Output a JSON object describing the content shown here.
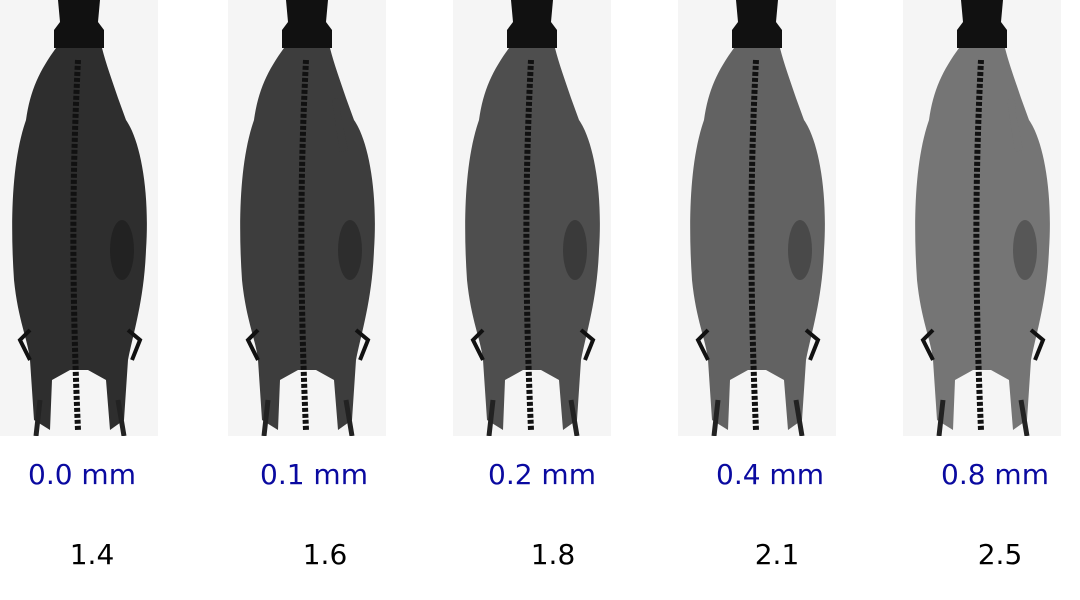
{
  "panels": [
    {
      "thickness": "0.0 mm",
      "value": "1.4",
      "body_gray": "#2e2e2e"
    },
    {
      "thickness": "0.1 mm",
      "value": "1.6",
      "body_gray": "#3d3d3d"
    },
    {
      "thickness": "0.2 mm",
      "value": "1.8",
      "body_gray": "#4e4e4e"
    },
    {
      "thickness": "0.4 mm",
      "value": "2.1",
      "body_gray": "#626262"
    },
    {
      "thickness": "0.8 mm",
      "value": "2.5",
      "body_gray": "#757575"
    }
  ],
  "colors": {
    "thickness_label": "#0a0aa0",
    "value_label": "#000000"
  }
}
